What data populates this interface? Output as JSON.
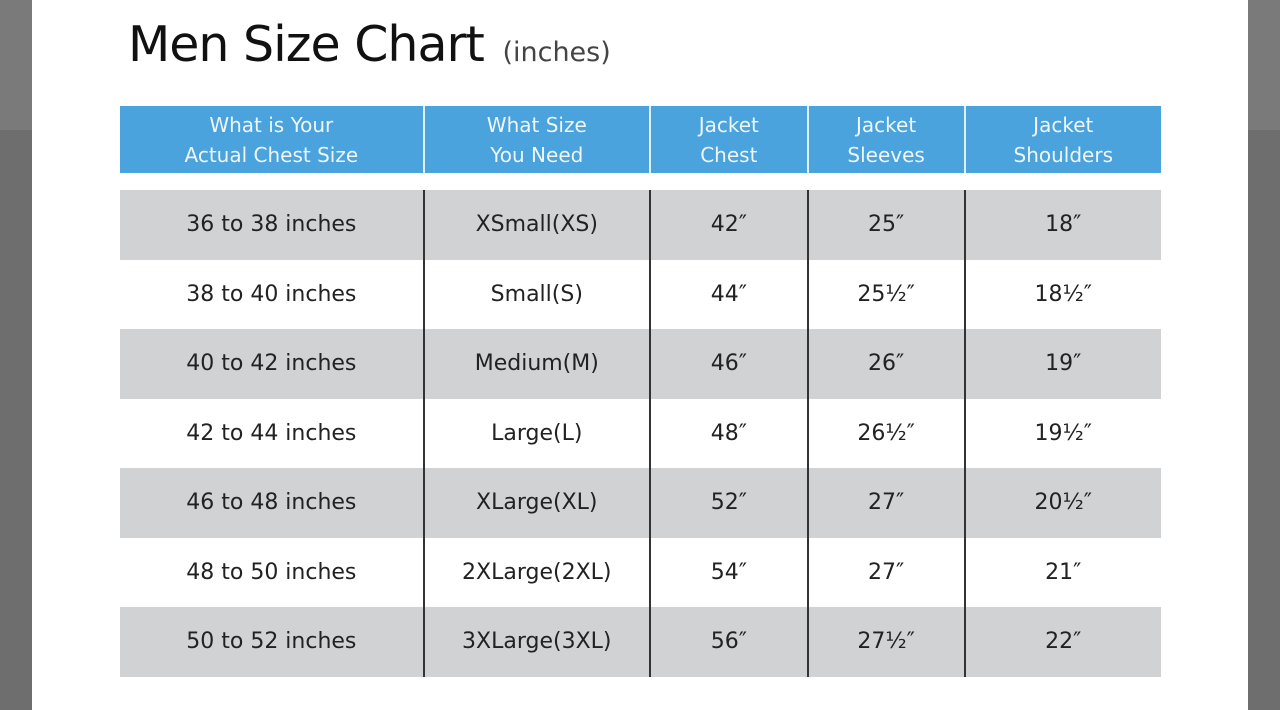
{
  "title": "Men Size Chart",
  "title_unit": "(inches)",
  "colors": {
    "header": "#4aa3dc",
    "shaded_row": "#d1d2d4",
    "background": "#6e6e6e"
  },
  "headers": [
    "What is Your\nActual Chest Size",
    "What Size\nYou Need",
    "Jacket\nChest",
    "Jacket\nSleeves",
    "Jacket\nShoulders"
  ],
  "rows": [
    [
      "36 to 38 inches",
      "XSmall(XS)",
      "42″",
      "25″",
      "18″"
    ],
    [
      "38 to 40 inches",
      "Small(S)",
      "44″",
      "25½″",
      "18½″"
    ],
    [
      "40 to 42 inches",
      "Medium(M)",
      "46″",
      "26″",
      "19″"
    ],
    [
      "42 to 44 inches",
      "Large(L)",
      "48″",
      "26½″",
      "19½″"
    ],
    [
      "46 to 48 inches",
      "XLarge(XL)",
      "52″",
      "27″",
      "20½″"
    ],
    [
      "48 to 50 inches",
      "2XLarge(2XL)",
      "54″",
      "27″",
      "21″"
    ],
    [
      "50 to 52 inches",
      "3XLarge(3XL)",
      "56″",
      "27½″",
      "22″"
    ]
  ]
}
